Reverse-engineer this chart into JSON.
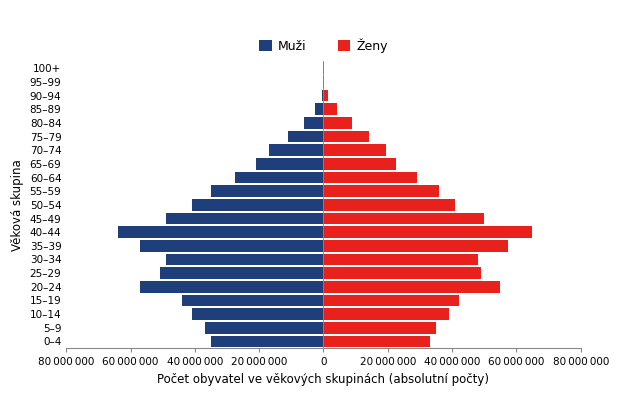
{
  "age_groups": [
    "0–4",
    "5–9",
    "10–14",
    "15–19",
    "20–24",
    "25–29",
    "30–34",
    "35–39",
    "40–44",
    "45–49",
    "50–54",
    "55–59",
    "60–64",
    "65–69",
    "70–74",
    "75–79",
    "80–84",
    "85–89",
    "90–94",
    "95–99",
    "100+"
  ],
  "males": [
    35000000,
    37000000,
    41000000,
    44000000,
    57000000,
    51000000,
    49000000,
    57000000,
    64000000,
    49000000,
    41000000,
    35000000,
    27500000,
    21000000,
    17000000,
    11000000,
    6000000,
    2500000,
    600000,
    120000,
    15000
  ],
  "females": [
    33000000,
    35000000,
    39000000,
    42000000,
    55000000,
    49000000,
    48000000,
    57500000,
    65000000,
    50000000,
    41000000,
    36000000,
    29000000,
    22500000,
    19500000,
    14000000,
    9000000,
    4200000,
    1400000,
    280000,
    28000
  ],
  "male_color": "#1f3f7a",
  "female_color": "#e8211d",
  "xlabel": "Počet obyvatel ve věkových skupinách (absolutní počty)",
  "ylabel": "Věková skupina",
  "legend_male": "Muži",
  "legend_female": "Ženy",
  "xlim": 80000000,
  "background_color": "#ffffff",
  "tick_step": 20000000,
  "bar_height": 0.85
}
